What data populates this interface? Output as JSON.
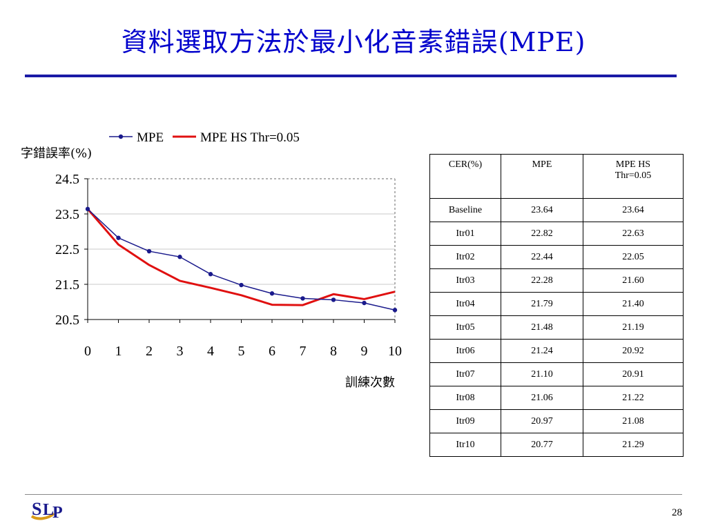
{
  "slide": {
    "title": "資料選取方法於最小化音素錯誤(MPE)",
    "page_number": "28",
    "logo_text": "SLP"
  },
  "colors": {
    "title": "#0000cc",
    "mpe": "#1a1a8c",
    "mpe_hs": "#e01010"
  },
  "chart_data": {
    "type": "line",
    "ylabel": "字錯誤率(%)",
    "xlabel": "訓練次數",
    "x": [
      0,
      1,
      2,
      3,
      4,
      5,
      6,
      7,
      8,
      9,
      10
    ],
    "ylim": [
      20.5,
      24.5
    ],
    "yticks": [
      "24.5",
      "23.5",
      "22.5",
      "21.5",
      "20.5"
    ],
    "legend_position": "top",
    "grid": "horizontal",
    "series": [
      {
        "name": "MPE",
        "color": "#1a1a8c",
        "marker": "dot",
        "values": [
          23.64,
          22.82,
          22.44,
          22.28,
          21.79,
          21.48,
          21.24,
          21.1,
          21.06,
          20.97,
          20.77
        ]
      },
      {
        "name": "MPE HS Thr=0.05",
        "color": "#e01010",
        "marker": "none",
        "values": [
          23.64,
          22.63,
          22.05,
          21.6,
          21.4,
          21.19,
          20.92,
          20.91,
          21.22,
          21.08,
          21.29
        ]
      }
    ]
  },
  "table": {
    "headers": [
      "CER(%)",
      "MPE",
      "MPE  HS\nThr=0.05"
    ],
    "rows": [
      [
        "Baseline",
        "23.64",
        "23.64"
      ],
      [
        "Itr01",
        "22.82",
        "22.63"
      ],
      [
        "Itr02",
        "22.44",
        "22.05"
      ],
      [
        "Itr03",
        "22.28",
        "21.60"
      ],
      [
        "Itr04",
        "21.79",
        "21.40"
      ],
      [
        "Itr05",
        "21.48",
        "21.19"
      ],
      [
        "Itr06",
        "21.24",
        "20.92"
      ],
      [
        "Itr07",
        "21.10",
        "20.91"
      ],
      [
        "Itr08",
        "21.06",
        "21.22"
      ],
      [
        "Itr09",
        "20.97",
        "21.08"
      ],
      [
        "Itr10",
        "20.77",
        "21.29"
      ]
    ]
  }
}
